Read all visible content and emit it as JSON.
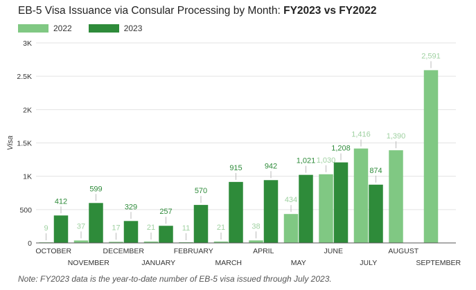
{
  "chart_data": {
    "type": "bar",
    "title_prefix": "EB-5 Visa Issuance via Consular Processing by Month: ",
    "title_bold": "FY2023 vs FY2022",
    "ylabel": "Visa",
    "xlabel": "",
    "ylim": [
      0,
      3000
    ],
    "yticks": [
      0,
      500,
      1000,
      1500,
      2000,
      2500,
      3000
    ],
    "ytick_labels": [
      "0",
      "500",
      "1K",
      "1.5K",
      "2K",
      "2.5K",
      "3K"
    ],
    "categories": [
      "OCTOBER",
      "NOVEMBER",
      "DECEMBER",
      "JANUARY",
      "FEBRUARY",
      "MARCH",
      "APRIL",
      "MAY",
      "JUNE",
      "JULY",
      "AUGUST",
      "SEPTEMBER"
    ],
    "series": [
      {
        "name": "2022",
        "color": "#80c883",
        "label_color": "#9fd1a1",
        "values": [
          9,
          37,
          17,
          21,
          11,
          21,
          38,
          434,
          1030,
          1416,
          1390,
          2591
        ],
        "labels": [
          "9",
          "37",
          "17",
          "21",
          "11",
          "21",
          "38",
          "434",
          "1,030",
          "1,416",
          "1,390",
          "2,591"
        ]
      },
      {
        "name": "2023",
        "color": "#2e8b3a",
        "label_color": "#2e8b3a",
        "values": [
          412,
          599,
          329,
          257,
          570,
          915,
          942,
          1021,
          1208,
          874,
          null,
          null
        ],
        "labels": [
          "412",
          "599",
          "329",
          "257",
          "570",
          "915",
          "942",
          "1,021",
          "1,208",
          "874",
          null,
          null
        ]
      }
    ],
    "legend_position": "top-left",
    "grid": true,
    "note": "Note: FY2023 data is the year-to-date number of EB-5 visa issued through July 2023."
  }
}
